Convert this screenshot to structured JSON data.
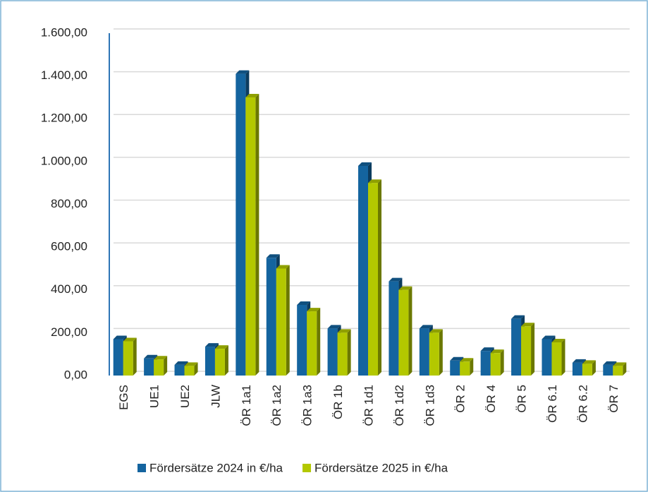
{
  "chart_data": {
    "type": "bar",
    "categories": [
      "EGS",
      "UE1",
      "UE2",
      "JLW",
      "ÖR 1a1",
      "ÖR 1a2",
      "ÖR 1a3",
      "ÖR 1b",
      "ÖR 1d1",
      "ÖR 1d2",
      "ÖR 1d3",
      "ÖR 2",
      "ÖR 4",
      "ÖR 5",
      "ÖR 6.1",
      "ÖR 6.2",
      "ÖR 7"
    ],
    "series": [
      {
        "name": "Fördersätze 2024 in €/ha",
        "color": "#14649f",
        "values": [
          170,
          80,
          50,
          135,
          1410,
          550,
          330,
          220,
          980,
          440,
          220,
          70,
          115,
          265,
          170,
          60,
          50
        ]
      },
      {
        "name": "Fördersätze 2025 in €/ha",
        "color": "#b3c800",
        "values": [
          160,
          75,
          45,
          125,
          1300,
          500,
          300,
          200,
          900,
          400,
          200,
          65,
          105,
          230,
          155,
          55,
          45
        ]
      }
    ],
    "ylim": [
      0,
      1600
    ],
    "yticks": [
      {
        "value": 0,
        "label": "0,00"
      },
      {
        "value": 200,
        "label": "200,00"
      },
      {
        "value": 400,
        "label": "400,00"
      },
      {
        "value": 600,
        "label": "600,00"
      },
      {
        "value": 800,
        "label": "800,00"
      },
      {
        "value": 1000,
        "label": "1.000,00"
      },
      {
        "value": 1200,
        "label": "1.200,00"
      },
      {
        "value": 1400,
        "label": "1.400,00"
      },
      {
        "value": 1600,
        "label": "1.600,00"
      }
    ],
    "grid": true,
    "legend": "bottom"
  }
}
